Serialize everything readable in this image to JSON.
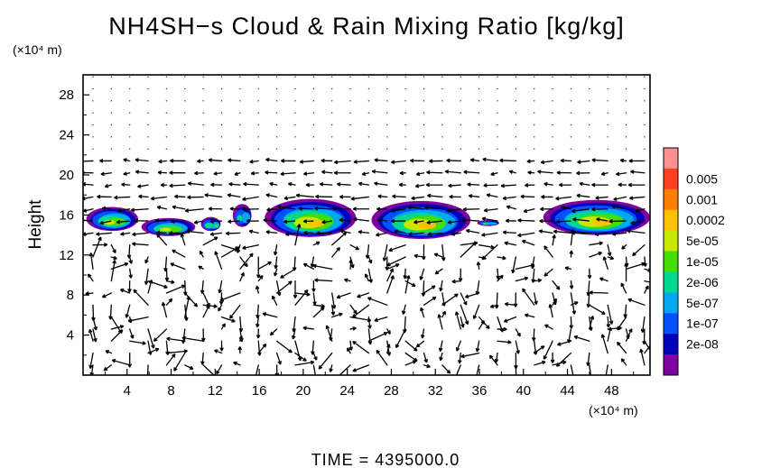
{
  "chart_data": {
    "type": "heatmap",
    "title": "NH4SH−s Cloud & Rain Mixing Ratio [kg/kg]",
    "xlabel": "",
    "ylabel": "Height",
    "x_unit": "(×10⁴ m)",
    "y_unit": "(×10⁴ m)",
    "xlim": [
      0,
      51.5
    ],
    "ylim": [
      0,
      30
    ],
    "x_ticks": [
      "4",
      "8",
      "12",
      "16",
      "20",
      "24",
      "28",
      "32",
      "36",
      "40",
      "44",
      "48"
    ],
    "y_ticks": [
      "4",
      "8",
      "12",
      "16",
      "20",
      "24",
      "28"
    ],
    "colorbar": {
      "labels": [
        "0.005",
        "0.001",
        "0.0002",
        "5e-05",
        "1e-05",
        "2e-06",
        "5e-07",
        "1e-07",
        "2e-08"
      ],
      "colors": [
        "#ff9090",
        "#ff4020",
        "#ff8000",
        "#ffc000",
        "#c8e600",
        "#44dd00",
        "#00d890",
        "#00a8f0",
        "#0050ff",
        "#0000b8",
        "#8000a0"
      ]
    },
    "cloud_patches": [
      {
        "x0": 0.3,
        "x1": 5.0,
        "y0": 14.4,
        "y1": 16.8,
        "core": "5e-05"
      },
      {
        "x0": 5.3,
        "x1": 10.2,
        "y0": 13.9,
        "y1": 15.7,
        "core": "5e-05"
      },
      {
        "x0": 10.7,
        "x1": 12.5,
        "y0": 14.4,
        "y1": 15.8,
        "core": "1e-05"
      },
      {
        "x0": 13.6,
        "x1": 15.3,
        "y0": 14.8,
        "y1": 17.1,
        "core": "2e-06"
      },
      {
        "x0": 16.5,
        "x1": 24.8,
        "y0": 13.8,
        "y1": 17.6,
        "core": "0.0002"
      },
      {
        "x0": 26.2,
        "x1": 35.2,
        "y0": 13.6,
        "y1": 17.4,
        "core": "0.0002"
      },
      {
        "x0": 35.8,
        "x1": 37.8,
        "y0": 14.9,
        "y1": 15.5,
        "core": "2e-06"
      },
      {
        "x0": 41.8,
        "x1": 51.5,
        "y0": 14.0,
        "y1": 17.5,
        "core": "0.0002"
      }
    ],
    "footer": "TIME = 4395000.0"
  }
}
